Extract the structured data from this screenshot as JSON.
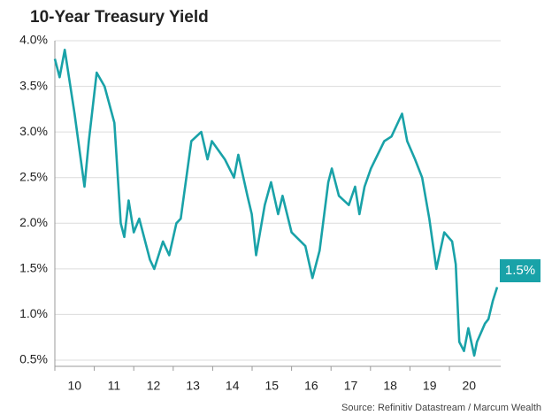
{
  "chart_data": {
    "type": "line",
    "title": "10-Year Treasury Yield",
    "source": "Source: Refinitiv Datastream / Marcum Wealth",
    "annotation": "1.5%",
    "color": "#19a2a8",
    "grid": true,
    "xlim": [
      10,
      21.3
    ],
    "xticks": [
      10,
      11,
      12,
      13,
      14,
      15,
      16,
      17,
      18,
      19,
      20
    ],
    "ylim": [
      0.5,
      4.0
    ],
    "yticks": [
      {
        "value": 0.5,
        "label": "0.5%"
      },
      {
        "value": 1.0,
        "label": "1.0%"
      },
      {
        "value": 1.5,
        "label": "1.5%"
      },
      {
        "value": 2.0,
        "label": "2.0%"
      },
      {
        "value": 2.5,
        "label": "2.5%"
      },
      {
        "value": 3.0,
        "label": "3.0%"
      },
      {
        "value": 3.5,
        "label": "3.5%"
      },
      {
        "value": 4.0,
        "label": "4.0%"
      }
    ],
    "x": [
      10.0,
      10.12,
      10.25,
      10.5,
      10.75,
      10.86,
      11.06,
      11.26,
      11.51,
      11.67,
      11.76,
      11.87,
      12.0,
      12.14,
      12.41,
      12.52,
      12.74,
      12.9,
      13.08,
      13.19,
      13.46,
      13.71,
      13.87,
      13.98,
      14.31,
      14.54,
      14.65,
      14.88,
      14.99,
      15.1,
      15.32,
      15.48,
      15.66,
      15.77,
      16.0,
      16.35,
      16.53,
      16.71,
      16.93,
      17.02,
      17.2,
      17.45,
      17.61,
      17.72,
      17.85,
      18.01,
      18.35,
      18.53,
      18.8,
      18.93,
      19.13,
      19.31,
      19.49,
      19.67,
      19.87,
      20.07,
      20.16,
      20.25,
      20.37,
      20.48,
      20.63,
      20.7,
      20.9,
      20.99,
      21.1,
      21.21
    ],
    "values": [
      3.8,
      3.6,
      3.9,
      3.2,
      2.4,
      2.9,
      3.65,
      3.5,
      3.1,
      2.0,
      1.85,
      2.25,
      1.9,
      2.05,
      1.6,
      1.5,
      1.8,
      1.65,
      2.0,
      2.05,
      2.9,
      3.0,
      2.7,
      2.9,
      2.7,
      2.5,
      2.75,
      2.3,
      2.1,
      1.65,
      2.2,
      2.45,
      2.1,
      2.3,
      1.9,
      1.75,
      1.4,
      1.7,
      2.45,
      2.6,
      2.3,
      2.2,
      2.4,
      2.1,
      2.4,
      2.6,
      2.9,
      2.95,
      3.2,
      2.9,
      2.7,
      2.5,
      2.05,
      1.5,
      1.9,
      1.8,
      1.55,
      0.7,
      0.6,
      0.85,
      0.55,
      0.7,
      0.9,
      0.95,
      1.15,
      1.3
    ]
  }
}
